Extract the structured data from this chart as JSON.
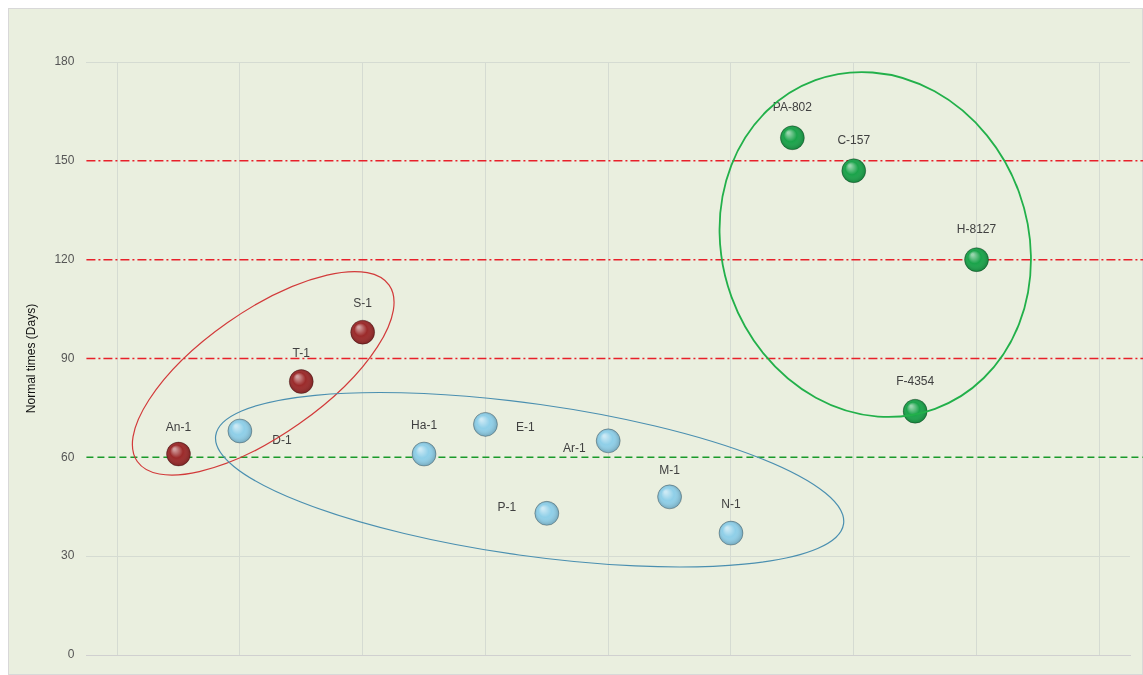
{
  "chart_data": {
    "type": "scatter",
    "ylabel": "Normal times (Days)",
    "categories": [
      null,
      null,
      null,
      null,
      null,
      null,
      null,
      null,
      null,
      null,
      null,
      null,
      null,
      null,
      null,
      null,
      null
    ],
    "ylim": [
      0,
      180
    ],
    "yticks": [
      0,
      30,
      60,
      90,
      120,
      150,
      180
    ],
    "tick_labels": "y",
    "grid": true,
    "marker": "circle",
    "series": [
      {
        "color": "#9b2a2a",
        "values": [
          null,
          61,
          null,
          83,
          98,
          null,
          null,
          null,
          null,
          null,
          null,
          null,
          null,
          null,
          null,
          null,
          null
        ],
        "value_labels": [
          null,
          "An-1",
          null,
          "T-1",
          "S-1",
          null,
          null,
          null,
          null,
          null,
          null,
          null,
          null,
          null,
          null,
          null,
          null
        ]
      },
      {
        "color": "#8fcfe8",
        "values": [
          null,
          null,
          68,
          null,
          null,
          61,
          70,
          43,
          65,
          48,
          37,
          null,
          null,
          null,
          null,
          null,
          null
        ],
        "value_labels": [
          null,
          null,
          "D-1",
          null,
          null,
          "Ha-1",
          "E-1",
          "P-1",
          "Ar-1",
          "M-1",
          "N-1",
          null,
          null,
          null,
          null,
          null,
          null
        ]
      },
      {
        "color": "#1aa34a",
        "values": [
          null,
          null,
          null,
          null,
          null,
          null,
          null,
          null,
          null,
          null,
          null,
          157,
          147,
          74,
          120,
          null,
          null
        ],
        "value_labels": [
          null,
          null,
          null,
          null,
          null,
          null,
          null,
          null,
          null,
          null,
          null,
          "PA-802",
          "C-157",
          "F-4354",
          "H-8127",
          null,
          null
        ]
      }
    ],
    "ref_lines": [
      {
        "axis": "y",
        "value": 150,
        "color": "#e8202a",
        "line_style": "dashdot"
      },
      {
        "axis": "y",
        "value": 120,
        "color": "#e8202a",
        "line_style": "dashdot"
      },
      {
        "axis": "y",
        "value": 90,
        "color": "#e8202a",
        "line_style": "dashdot"
      },
      {
        "axis": "y",
        "value": 60,
        "color": "#1a9a2a",
        "line_style": "dashed"
      }
    ]
  }
}
